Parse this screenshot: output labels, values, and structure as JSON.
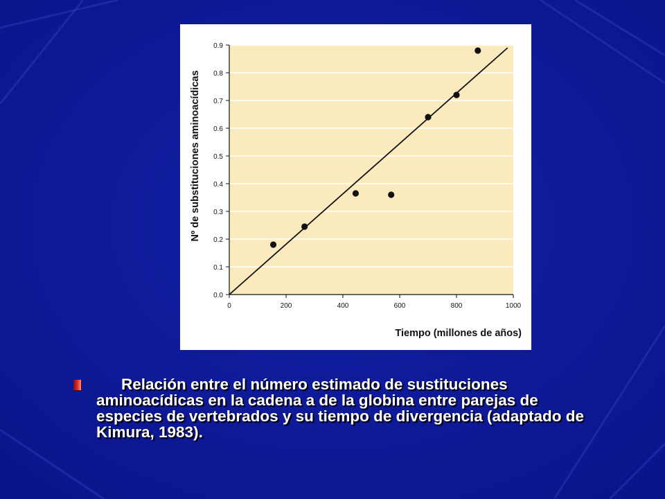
{
  "slide": {
    "caption": "Relación entre el número estimado de sustituciones aminoacídicas en la cadena a de la globina entre parejas de especies de vertebrados y su tiempo de divergencia (adaptado de Kimura, 1983).",
    "bullet_icon": "red-square-bullet-icon",
    "colors": {
      "background": "#0f1a9a",
      "plot_background": "#faeabd",
      "gridline": "#ffffff",
      "marker": "#111111",
      "caption_text": "#ffffff",
      "bullet": "#d42a24"
    }
  },
  "chart_data": {
    "type": "scatter",
    "title": "",
    "xlabel": "Tiempo (millones de años)",
    "ylabel": "Nº de substituciones aminoacídicas",
    "xlim": [
      0,
      1000
    ],
    "ylim": [
      0,
      0.9
    ],
    "xticks": [
      "0",
      "200",
      "400",
      "600",
      "800",
      "1000"
    ],
    "yticks": [
      "0.0",
      "0.1",
      "0.2",
      "0.3",
      "0.4",
      "0.5",
      "0.6",
      "0.7",
      "0.8",
      "0.9"
    ],
    "grid": true,
    "legend": "none",
    "points": [
      {
        "x": 155,
        "y": 0.18
      },
      {
        "x": 265,
        "y": 0.245
      },
      {
        "x": 445,
        "y": 0.365
      },
      {
        "x": 570,
        "y": 0.36
      },
      {
        "x": 700,
        "y": 0.64
      },
      {
        "x": 800,
        "y": 0.72
      },
      {
        "x": 875,
        "y": 0.88
      }
    ],
    "trend_line": {
      "x": [
        0,
        980
      ],
      "y": [
        0,
        0.89
      ]
    }
  }
}
